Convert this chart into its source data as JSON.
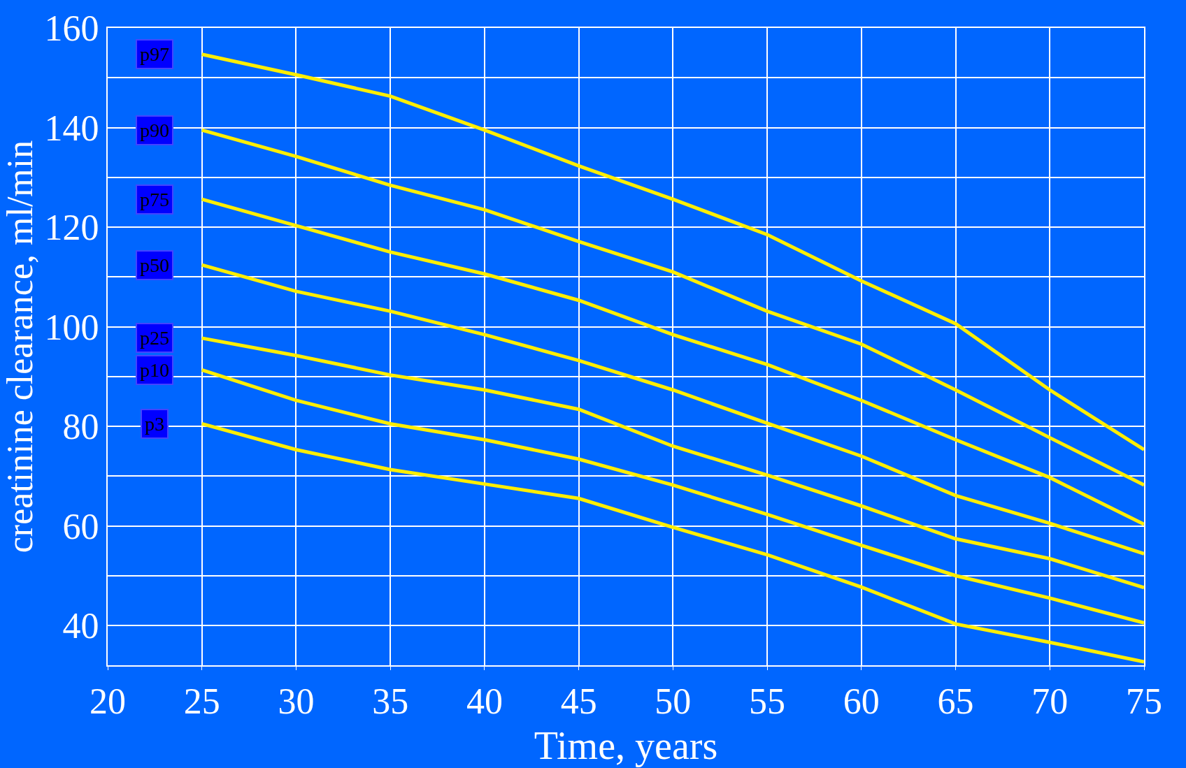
{
  "chart_data": {
    "type": "line",
    "xlabel": "Time, years",
    "ylabel": "creatinine clearance, ml/min",
    "x": [
      25,
      30,
      35,
      40,
      45,
      50,
      55,
      60,
      65,
      70,
      75
    ],
    "series": [
      {
        "name": "p97",
        "color": "#ffee00",
        "values": [
          154.7,
          150.6,
          146.3,
          139.5,
          132.3,
          125.6,
          118.5,
          109.2,
          100.6,
          87.3,
          75.3
        ]
      },
      {
        "name": "p90",
        "color": "#ffee00",
        "values": [
          139.5,
          134.2,
          128.4,
          123.5,
          117.1,
          111,
          103.1,
          96.5,
          87.3,
          77.7,
          68.2
        ]
      },
      {
        "name": "p75",
        "color": "#ffee00",
        "values": [
          125.6,
          120.3,
          115,
          110.6,
          105.3,
          98.4,
          92.4,
          85.2,
          77.3,
          69.7,
          60.3
        ]
      },
      {
        "name": "p50",
        "color": "#ffee00",
        "values": [
          112.4,
          107.1,
          103.1,
          98.4,
          93.2,
          87.3,
          80.6,
          74,
          66.1,
          60.5,
          54.4
        ]
      },
      {
        "name": "p25",
        "color": "#ffee00",
        "values": [
          97.7,
          94.2,
          90.3,
          87.3,
          83.4,
          76,
          70.2,
          64,
          57.4,
          53.4,
          47.6
        ]
      },
      {
        "name": "p10",
        "color": "#ffee00",
        "values": [
          91.3,
          85.2,
          80.5,
          77.3,
          73.4,
          68.2,
          62.3,
          56.1,
          50,
          45.5,
          40.5
        ]
      },
      {
        "name": "p3",
        "color": "#ffee00",
        "values": [
          80.5,
          75.3,
          71.3,
          68.4,
          65.5,
          59.7,
          54.2,
          47.7,
          40.3,
          36.6,
          32.7
        ]
      }
    ],
    "xlim": [
      20,
      75
    ],
    "ylim": [
      32,
      160
    ],
    "xticks": [
      20,
      25,
      30,
      35,
      40,
      45,
      50,
      55,
      60,
      65,
      70,
      75
    ],
    "yticks": [
      40,
      {
        "value": 50,
        "label": null
      },
      60,
      {
        "value": 70,
        "label": null
      },
      80,
      {
        "value": 90,
        "label": null
      },
      100,
      {
        "value": 110,
        "label": null
      },
      120,
      {
        "value": 130,
        "label": null
      },
      140,
      {
        "value": 150,
        "label": null
      },
      160
    ],
    "grid": true,
    "legend": false,
    "marker": "none",
    "line_style": "solid"
  }
}
